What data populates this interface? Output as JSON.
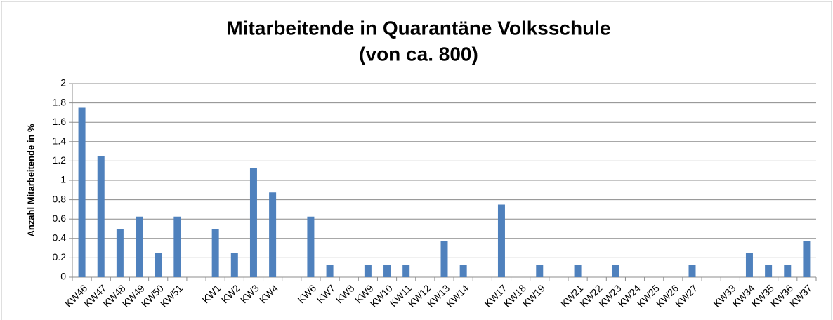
{
  "chart_data": {
    "type": "bar",
    "title": [
      "Mitarbeitende in Quarantäne Volksschule",
      "(von ca. 800)"
    ],
    "y_label": "Anzahl Mitarbeitende in %",
    "categories": [
      "KW46",
      "KW47",
      "KW48",
      "KW49",
      "KW50",
      "KW51",
      null,
      "KW1",
      "KW2",
      "KW3",
      "KW4",
      null,
      "KW6",
      "KW7",
      "KW8",
      "KW9",
      "KW10",
      "KW11",
      "KW12",
      "KW13",
      "KW14",
      null,
      "KW17",
      "KW18",
      "KW19",
      null,
      "KW21",
      "KW22",
      "KW23",
      "KW24",
      "KW25",
      "KW26",
      "KW27",
      null,
      "KW33",
      "KW34",
      "KW35",
      "KW36",
      "KW37"
    ],
    "values": [
      1.75,
      1.25,
      0.5,
      0.625,
      0.25,
      0.625,
      null,
      0.5,
      0.25,
      1.125,
      0.875,
      null,
      0.625,
      0.125,
      0,
      0.125,
      0.125,
      0.125,
      0,
      0.375,
      0.125,
      null,
      0.75,
      0,
      0.125,
      null,
      0.125,
      0,
      0.125,
      0,
      0,
      0,
      0.125,
      null,
      0,
      0.25,
      0.125,
      0.125,
      0.375
    ],
    "color": "#4f81bd",
    "ylim": [
      0,
      2
    ],
    "yticks": [
      0,
      0.2,
      0.4,
      0.6,
      0.8,
      1,
      1.2,
      1.4,
      1.6,
      1.8,
      2
    ],
    "grid": true
  }
}
